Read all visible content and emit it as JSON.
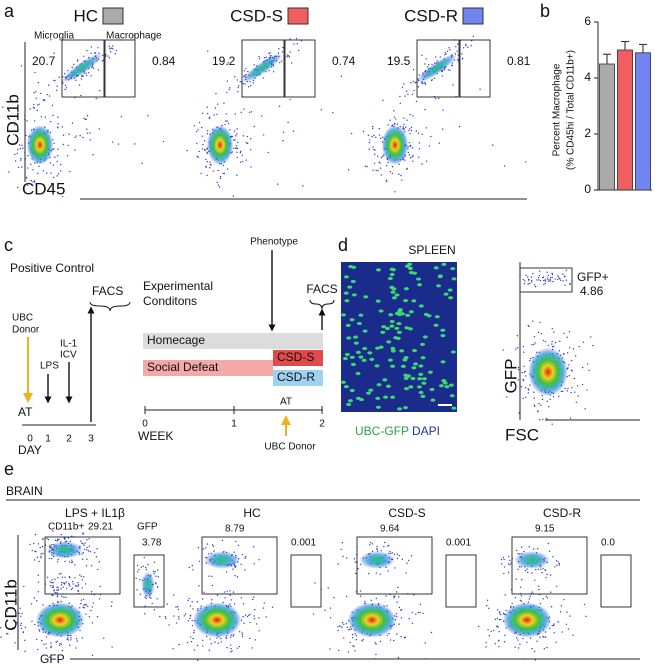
{
  "panel_a": {
    "label": "a",
    "gate_labels": [
      "Microglia",
      "Macrophage"
    ],
    "y_axis": "CD11b",
    "x_axis": "CD45",
    "groups": [
      {
        "name": "HC",
        "color": "#aaaaaa",
        "microglia": "20.7",
        "macrophage": "0.84"
      },
      {
        "name": "CSD-S",
        "color": "#ef5f62",
        "microglia": "19.2",
        "macrophage": "0.74"
      },
      {
        "name": "CSD-R",
        "color": "#7283f2",
        "microglia": "19.5",
        "macrophage": "0.81"
      }
    ]
  },
  "chart_data": {
    "type": "bar",
    "panel_label": "b",
    "ylabel": [
      "Percent Macrophage",
      "(% CD45hi / Total CD11b+)"
    ],
    "categories": [
      null,
      null,
      null
    ],
    "values": [
      4.5,
      5.0,
      4.9
    ],
    "errors": [
      0.35,
      0.3,
      0.3
    ],
    "colors": [
      "#aaaaaa",
      "#ef5f62",
      "#7283f2"
    ],
    "ylim": [
      0,
      6
    ],
    "yticks": [
      0,
      2,
      4,
      6
    ]
  },
  "panel_c": {
    "label": "c",
    "positive_control": {
      "title": "Positive Control",
      "donor": [
        "UBC",
        "Donor"
      ],
      "lps": "LPS",
      "il1": [
        "IL-1",
        "ICV"
      ],
      "facs": "FACS",
      "start": "AT",
      "ticks": [
        "0",
        "1",
        "2",
        "3"
      ],
      "axis": "DAY"
    },
    "experimental": {
      "title": [
        "Experimental",
        "Conditons"
      ],
      "phenotype": "Phenotype",
      "facs": "FACS",
      "bars": [
        "Homecage",
        "Social Defeat",
        "CSD-S",
        "CSD-R"
      ],
      "ticks": [
        "0",
        "1",
        "2"
      ],
      "axis": "WEEK",
      "at": "AT",
      "donor": "UBC Donor"
    }
  },
  "panel_d": {
    "label": "d",
    "title": "SPLEEN",
    "legend": [
      "UBC-GFP",
      "DAPI"
    ],
    "gate": "GFP+",
    "value": "4.86",
    "y_axis": "GFP",
    "x_axis": "FSC"
  },
  "panel_e": {
    "label": "e",
    "region": "BRAIN",
    "cd11b_label": "CD11b+",
    "gfp_label": "GFP",
    "y_axis": "CD11b",
    "x_axis": "GFP",
    "plots": [
      {
        "title": "LPS + IL1β",
        "cd11b": "29.21",
        "gfp": "3.78"
      },
      {
        "title": "HC",
        "cd11b": "8.79",
        "gfp": "0.001"
      },
      {
        "title": "CSD-S",
        "cd11b": "9.64",
        "gfp": "0.001"
      },
      {
        "title": "CSD-R",
        "cd11b": "9.15",
        "gfp": "0.0"
      }
    ]
  }
}
